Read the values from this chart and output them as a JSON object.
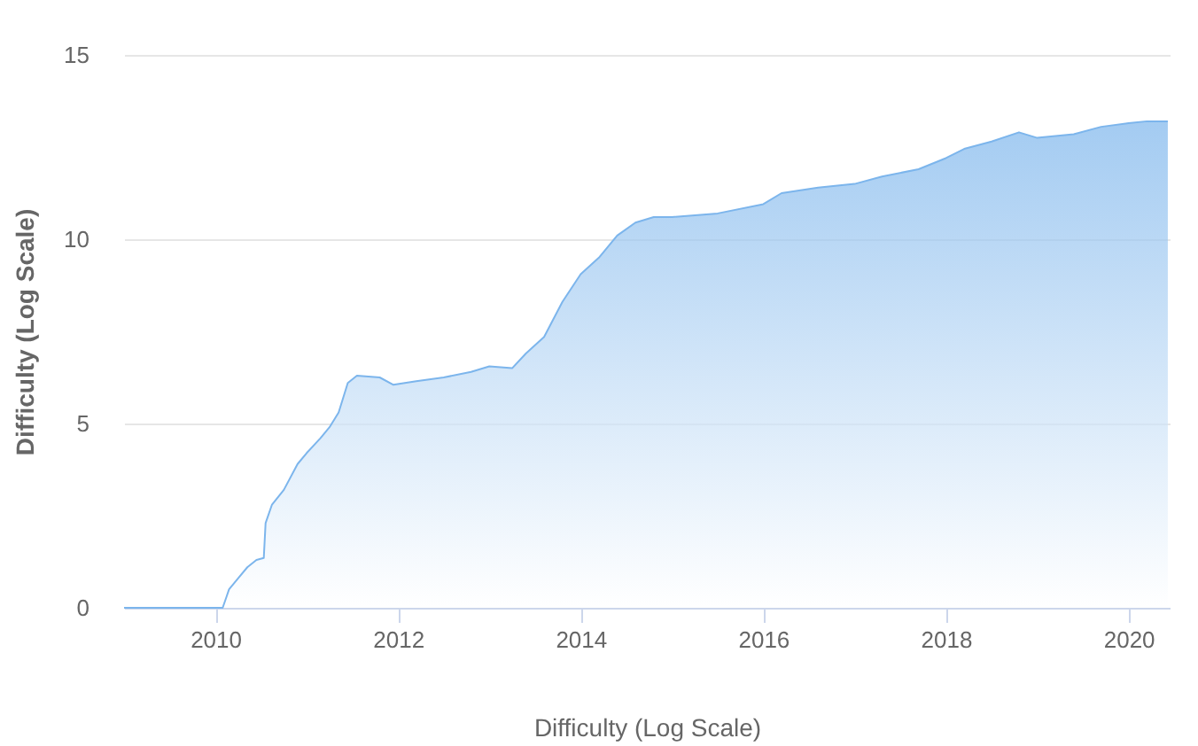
{
  "chart_data": {
    "type": "area",
    "xlabel": "Difficulty (Log Scale)",
    "ylabel": "Difficulty (Log Scale)",
    "xlim": [
      2009,
      2020.45
    ],
    "xticks": [
      2010,
      2012,
      2014,
      2016,
      2018,
      2020
    ],
    "ylim": [
      0,
      15
    ],
    "yticks": [
      0,
      5,
      10,
      15
    ],
    "grid": "y",
    "series": [
      {
        "color": "#7cb5ec",
        "x": [
          2009.0,
          2010.08,
          2010.15,
          2010.25,
          2010.35,
          2010.45,
          2010.53,
          2010.55,
          2010.62,
          2010.75,
          2010.9,
          2011.0,
          2011.15,
          2011.25,
          2011.35,
          2011.45,
          2011.55,
          2011.8,
          2011.95,
          2012.2,
          2012.5,
          2012.8,
          2013.0,
          2013.25,
          2013.4,
          2013.6,
          2013.8,
          2014.0,
          2014.2,
          2014.4,
          2014.6,
          2014.8,
          2015.0,
          2015.5,
          2016.0,
          2016.2,
          2016.6,
          2017.0,
          2017.3,
          2017.7,
          2018.0,
          2018.2,
          2018.5,
          2018.8,
          2019.0,
          2019.4,
          2019.7,
          2020.0,
          2020.2,
          2020.43
        ],
        "values": [
          0,
          0,
          0.5,
          0.8,
          1.1,
          1.3,
          1.35,
          2.3,
          2.8,
          3.2,
          3.9,
          4.2,
          4.6,
          4.9,
          5.3,
          6.1,
          6.3,
          6.25,
          6.05,
          6.15,
          6.25,
          6.4,
          6.55,
          6.5,
          6.9,
          7.35,
          8.3,
          9.05,
          9.5,
          10.1,
          10.45,
          10.6,
          10.6,
          10.7,
          10.95,
          11.25,
          11.4,
          11.5,
          11.7,
          11.9,
          12.2,
          12.45,
          12.65,
          12.9,
          12.75,
          12.85,
          13.05,
          13.15,
          13.2,
          13.2
        ]
      }
    ]
  }
}
